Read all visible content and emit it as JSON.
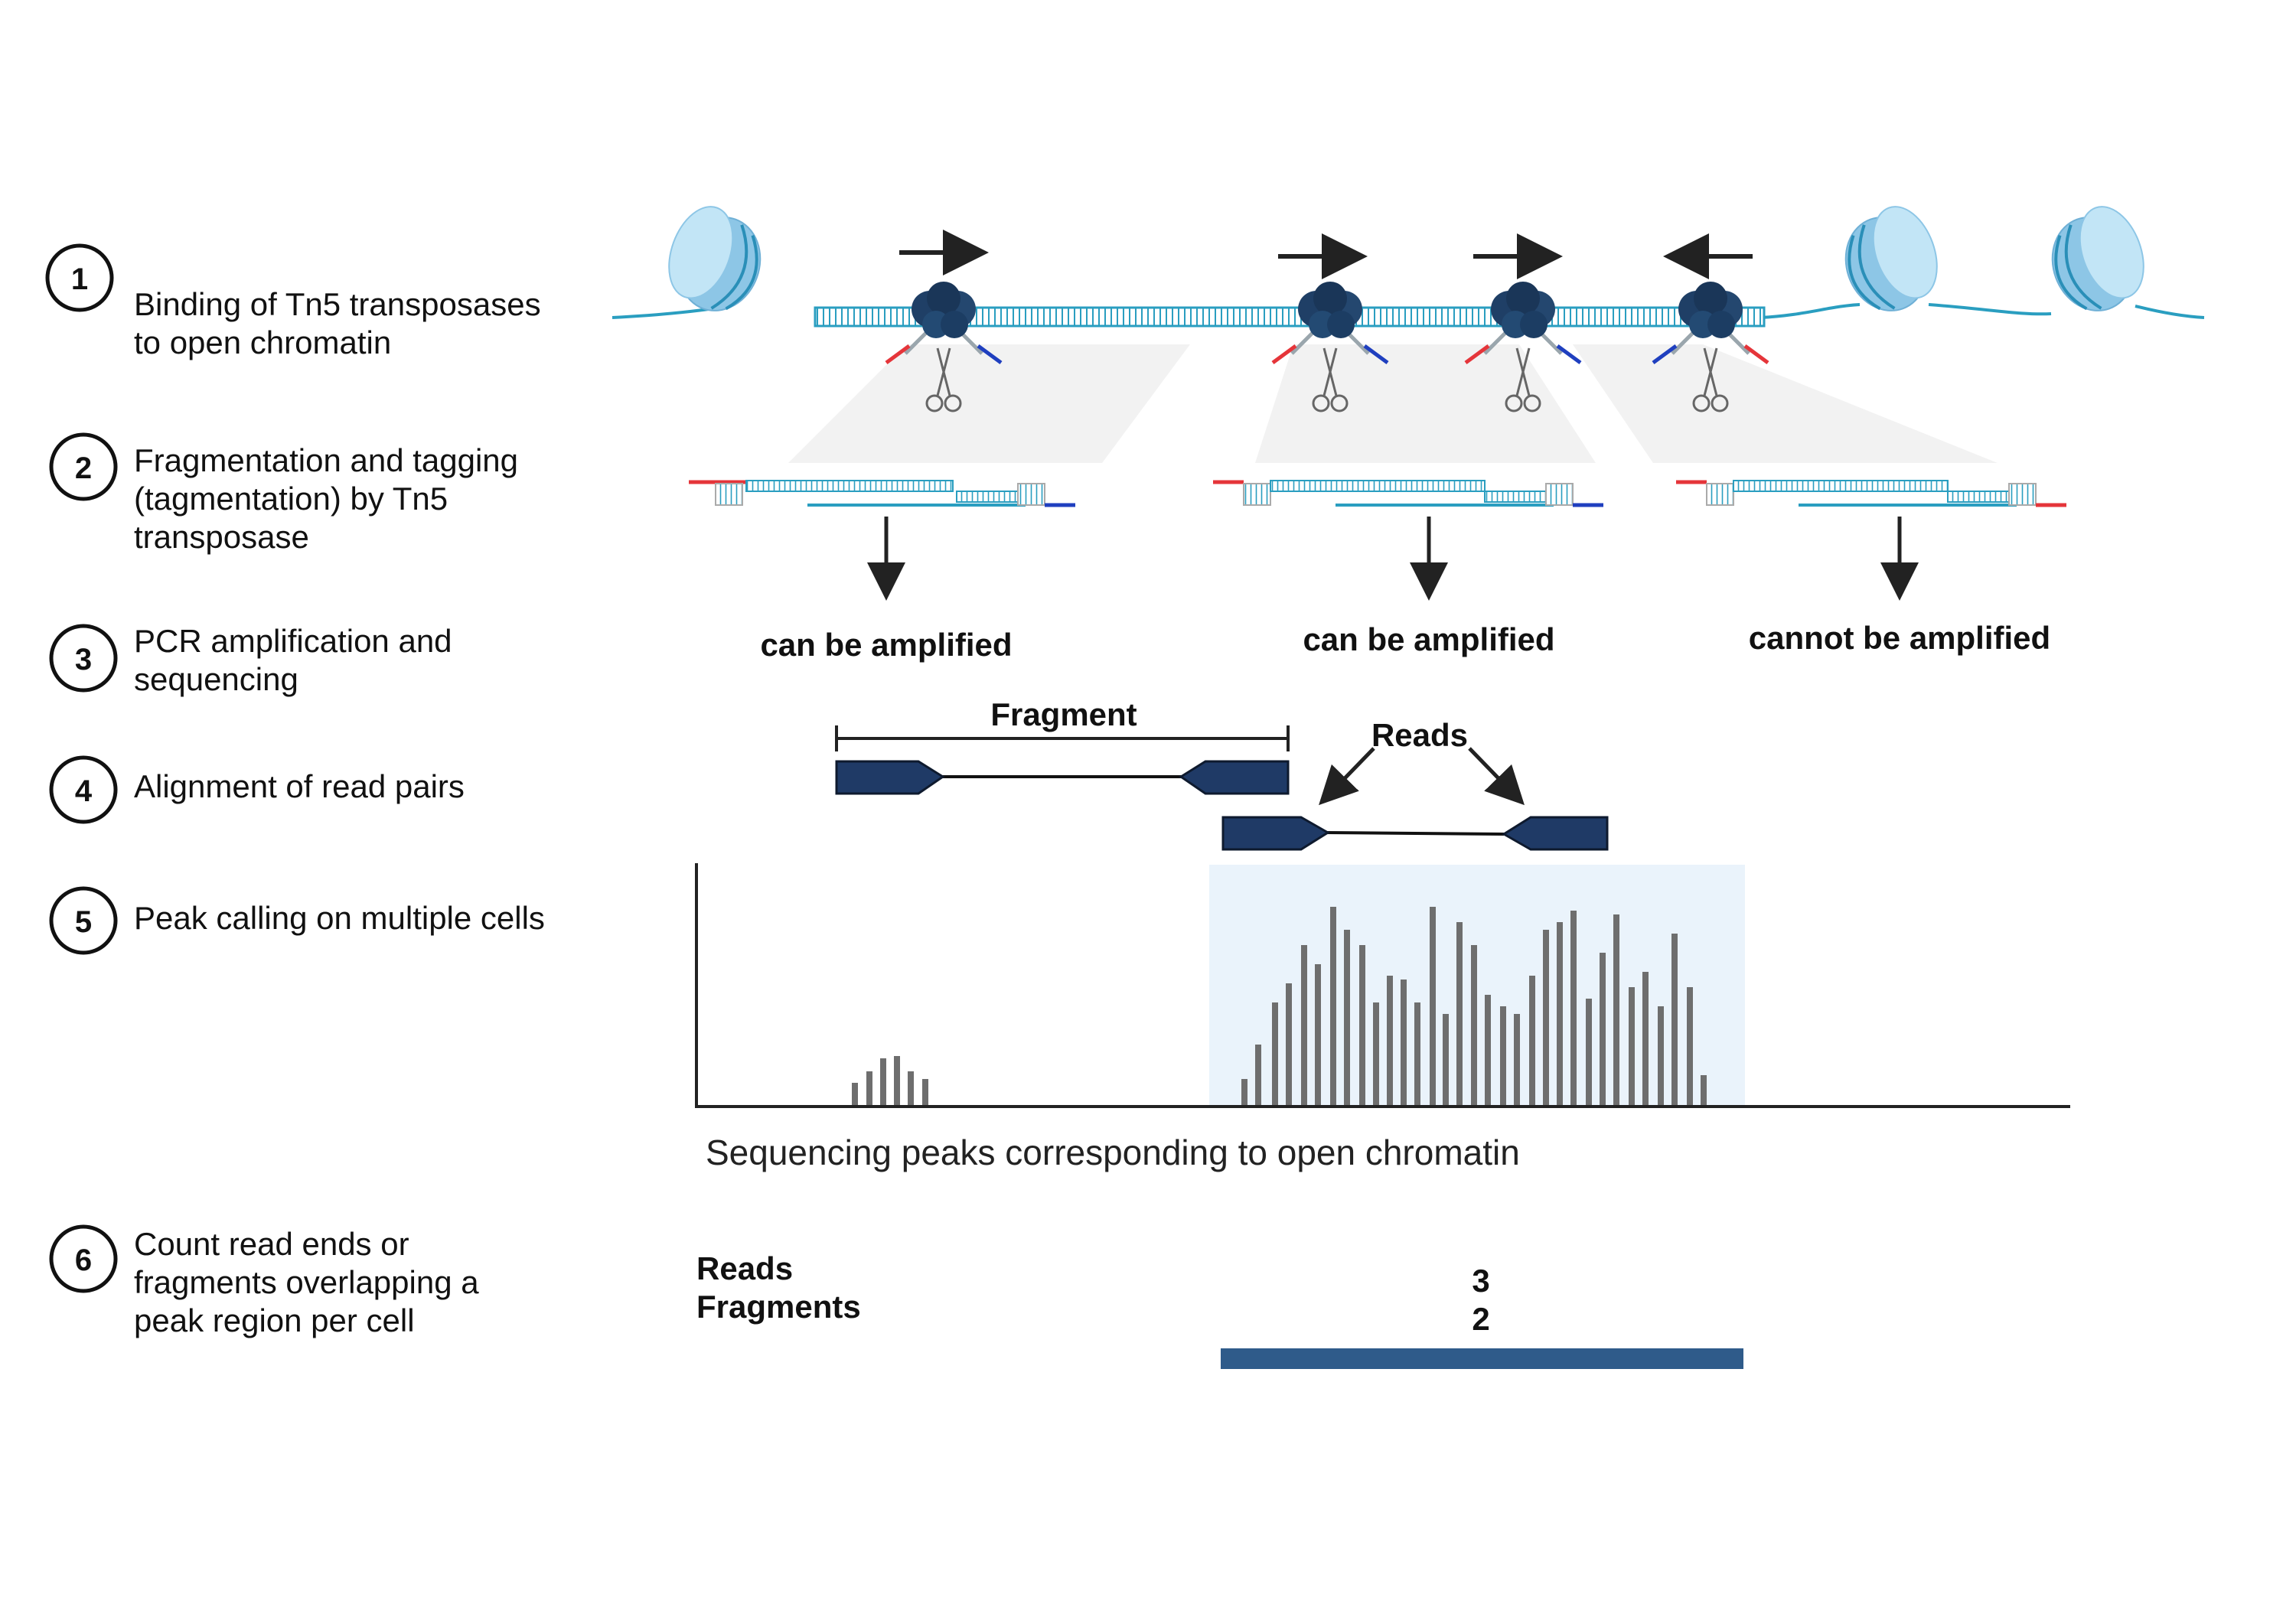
{
  "steps": [
    {
      "num": "1",
      "lines": [
        "Binding of Tn5 transposases",
        "to open chromatin"
      ]
    },
    {
      "num": "2",
      "lines": [
        "Fragmentation and tagging",
        "(tagmentation) by Tn5",
        "transposase"
      ]
    },
    {
      "num": "3",
      "lines": [
        "PCR amplification and",
        "sequencing"
      ]
    },
    {
      "num": "4",
      "lines": [
        "Alignment of read pairs"
      ]
    },
    {
      "num": "5",
      "lines": [
        "Peak calling on multiple cells"
      ]
    },
    {
      "num": "6",
      "lines": [
        "Count read ends or",
        "fragments overlapping a",
        "peak region per cell"
      ]
    }
  ],
  "amplification": {
    "left": "can be amplified",
    "middle": "can be amplified",
    "right": "cannot be amplified"
  },
  "alignment": {
    "fragment_label": "Fragment",
    "reads_label": "Reads"
  },
  "peaks": {
    "caption": "Sequencing peaks corresponding to open chromatin"
  },
  "counts": {
    "reads_label": "Reads",
    "fragments_label": "Fragments",
    "reads_value": "3",
    "fragments_value": "2"
  },
  "colors": {
    "dna": "#2a9ec0",
    "nucleosome": "#a9d8ef",
    "tn5": "#1f3f66",
    "adapter_red": "#e5353a",
    "adapter_blue": "#1f3fbf",
    "read_block": "#1f3a66",
    "peak_bar": "#6e6e6e",
    "peak_bg": "#eaf3fb",
    "count_bar": "#2f5b8a"
  }
}
